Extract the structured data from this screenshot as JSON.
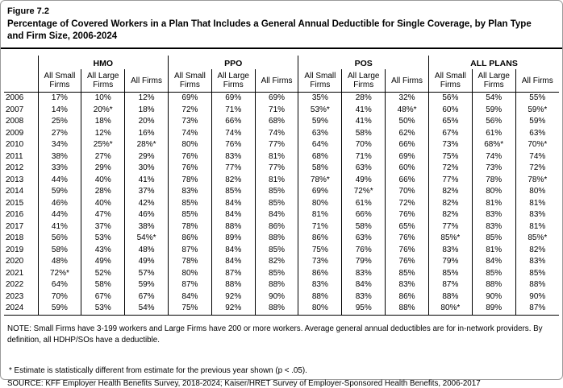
{
  "figure": {
    "label": "Figure 7.2",
    "title": "Percentage of Covered Workers in a Plan That Includes a General Annual Deductible for Single Coverage, by Plan Type and Firm Size, 2006-2024"
  },
  "chart_data": {
    "type": "table",
    "groups": [
      "HMO",
      "PPO",
      "POS",
      "ALL PLANS"
    ],
    "subcolumns": [
      "All Small Firms",
      "All Large Firms",
      "All Firms"
    ],
    "year_column_label": "",
    "rows": [
      {
        "year": "2006",
        "values": [
          "17%",
          "10%",
          "12%",
          "69%",
          "69%",
          "69%",
          "35%",
          "28%",
          "32%",
          "56%",
          "54%",
          "55%"
        ]
      },
      {
        "year": "2007",
        "values": [
          "14%",
          "20%*",
          "18%",
          "72%",
          "71%",
          "71%",
          "53%*",
          "41%",
          "48%*",
          "60%",
          "59%",
          "59%*"
        ]
      },
      {
        "year": "2008",
        "values": [
          "25%",
          "18%",
          "20%",
          "73%",
          "66%",
          "68%",
          "59%",
          "41%",
          "50%",
          "65%",
          "56%",
          "59%"
        ]
      },
      {
        "year": "2009",
        "values": [
          "27%",
          "12%",
          "16%",
          "74%",
          "74%",
          "74%",
          "63%",
          "58%",
          "62%",
          "67%",
          "61%",
          "63%"
        ]
      },
      {
        "year": "2010",
        "values": [
          "34%",
          "25%*",
          "28%*",
          "80%",
          "76%",
          "77%",
          "64%",
          "70%",
          "66%",
          "73%",
          "68%*",
          "70%*"
        ]
      },
      {
        "year": "2011",
        "values": [
          "38%",
          "27%",
          "29%",
          "76%",
          "83%",
          "81%",
          "68%",
          "71%",
          "69%",
          "75%",
          "74%",
          "74%"
        ]
      },
      {
        "year": "2012",
        "values": [
          "33%",
          "29%",
          "30%",
          "76%",
          "77%",
          "77%",
          "58%",
          "63%",
          "60%",
          "72%",
          "73%",
          "72%"
        ]
      },
      {
        "year": "2013",
        "values": [
          "44%",
          "40%",
          "41%",
          "78%",
          "82%",
          "81%",
          "78%*",
          "49%",
          "66%",
          "77%",
          "78%",
          "78%*"
        ]
      },
      {
        "year": "2014",
        "values": [
          "59%",
          "28%",
          "37%",
          "83%",
          "85%",
          "85%",
          "69%",
          "72%*",
          "70%",
          "82%",
          "80%",
          "80%"
        ]
      },
      {
        "year": "2015",
        "values": [
          "46%",
          "40%",
          "42%",
          "85%",
          "84%",
          "85%",
          "80%",
          "61%",
          "72%",
          "82%",
          "81%",
          "81%"
        ]
      },
      {
        "year": "2016",
        "values": [
          "44%",
          "47%",
          "46%",
          "85%",
          "84%",
          "84%",
          "81%",
          "66%",
          "76%",
          "82%",
          "83%",
          "83%"
        ]
      },
      {
        "year": "2017",
        "values": [
          "41%",
          "37%",
          "38%",
          "78%",
          "88%",
          "86%",
          "71%",
          "58%",
          "65%",
          "77%",
          "83%",
          "81%"
        ]
      },
      {
        "year": "2018",
        "values": [
          "56%",
          "53%",
          "54%*",
          "86%",
          "89%",
          "88%",
          "86%",
          "63%",
          "76%",
          "85%*",
          "85%",
          "85%*"
        ]
      },
      {
        "year": "2019",
        "values": [
          "58%",
          "43%",
          "48%",
          "87%",
          "84%",
          "85%",
          "75%",
          "76%",
          "76%",
          "83%",
          "81%",
          "82%"
        ]
      },
      {
        "year": "2020",
        "values": [
          "48%",
          "49%",
          "49%",
          "78%",
          "84%",
          "82%",
          "73%",
          "79%",
          "76%",
          "79%",
          "84%",
          "83%"
        ]
      },
      {
        "year": "2021",
        "values": [
          "72%*",
          "52%",
          "57%",
          "80%",
          "87%",
          "85%",
          "86%",
          "83%",
          "85%",
          "85%",
          "85%",
          "85%"
        ]
      },
      {
        "year": "2022",
        "values": [
          "64%",
          "58%",
          "59%",
          "87%",
          "88%",
          "88%",
          "83%",
          "84%",
          "83%",
          "87%",
          "88%",
          "88%"
        ]
      },
      {
        "year": "2023",
        "values": [
          "70%",
          "67%",
          "67%",
          "84%",
          "92%",
          "90%",
          "88%",
          "83%",
          "86%",
          "88%",
          "90%",
          "90%"
        ]
      },
      {
        "year": "2024",
        "values": [
          "59%",
          "53%",
          "54%",
          "75%",
          "92%",
          "88%",
          "80%",
          "95%",
          "88%",
          "80%*",
          "89%",
          "87%"
        ]
      }
    ]
  },
  "notes": {
    "note": "NOTE: Small Firms have 3-199 workers and Large Firms have 200 or more workers. Average general annual deductibles are for in-network providers. By definition, all HDHP/SOs have a deductible.",
    "footnote": "* Estimate is statistically different from estimate for the previous year shown (p < .05).",
    "source": "SOURCE: KFF Employer Health Benefits Survey, 2018-2024; Kaiser/HRET Survey of Employer-Sponsored Health Benefits, 2006-2017"
  }
}
